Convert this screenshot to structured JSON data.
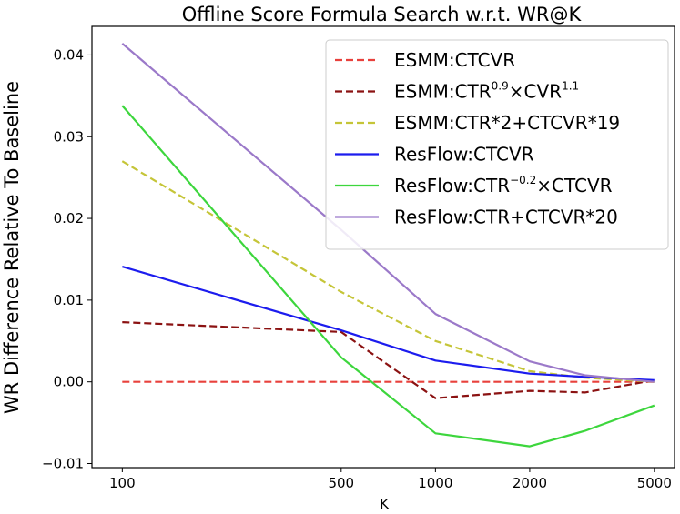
{
  "chart_data": {
    "type": "line",
    "title": "Offline Score Formula Search w.r.t. WR@K",
    "xlabel": "K",
    "ylabel": "WR Difference Relative To Baseline",
    "x_scale": "log",
    "x": [
      100,
      500,
      1000,
      2000,
      3000,
      5000
    ],
    "x_ticks": [
      100,
      500,
      1000,
      2000,
      5000
    ],
    "x_tick_labels": [
      "100",
      "500",
      "1000",
      "2000",
      "5000"
    ],
    "y_ticks": [
      -0.01,
      0.0,
      0.01,
      0.02,
      0.03,
      0.04
    ],
    "y_tick_labels": [
      "−0.01",
      "0.00",
      "0.01",
      "0.02",
      "0.03",
      "0.04"
    ],
    "ylim": [
      -0.0105,
      0.0435
    ],
    "xlim": [
      80,
      5800
    ],
    "grid": false,
    "legend_position": "upper right",
    "series": [
      {
        "name": "ESMM:CTCVR",
        "name_base": "ESMM:CTCVR",
        "name_parts": [],
        "color": "#e8413c",
        "dash": "dashed",
        "values": [
          0.0,
          0.0,
          0.0,
          0.0,
          0.0,
          0.0
        ]
      },
      {
        "name": "ESMM:CTR^0.9×CVR^1.1",
        "name_base": "ESMM:CTR",
        "name_parts": [
          {
            "sup": "0.9"
          },
          {
            "text": "×CVR"
          },
          {
            "sup": "1.1"
          }
        ],
        "color": "#8b1212",
        "dash": "dashed",
        "values": [
          0.0073,
          0.0061,
          -0.002,
          -0.0011,
          -0.0013,
          0.0002
        ]
      },
      {
        "name": "ESMM:CTR*2+CTCVR*19",
        "name_base": "ESMM:CTR*2+CTCVR*19",
        "name_parts": [],
        "color": "#c5c538",
        "dash": "dashed",
        "values": [
          0.027,
          0.011,
          0.005,
          0.0013,
          0.0005,
          0.0
        ]
      },
      {
        "name": "ResFlow:CTCVR",
        "name_base": "ResFlow:CTCVR",
        "name_parts": [],
        "color": "#1c1cee",
        "dash": "solid",
        "values": [
          0.0141,
          0.0063,
          0.0026,
          0.001,
          0.0006,
          0.0002
        ]
      },
      {
        "name": "ResFlow:CTR^−0.2×CTCVR",
        "name_base": "ResFlow:CTR",
        "name_parts": [
          {
            "sup": "−0.2"
          },
          {
            "text": "×CTCVR"
          }
        ],
        "color": "#3dd63d",
        "dash": "solid",
        "values": [
          0.0338,
          0.003,
          -0.0063,
          -0.0079,
          -0.006,
          -0.0029
        ]
      },
      {
        "name": "ResFlow:CTR+CTCVR*20",
        "name_base": "ResFlow:CTR+CTCVR*20",
        "name_parts": [],
        "color": "#9b79c9",
        "dash": "solid",
        "values": [
          0.0414,
          0.0186,
          0.0083,
          0.0025,
          0.0008,
          0.0
        ]
      }
    ]
  }
}
